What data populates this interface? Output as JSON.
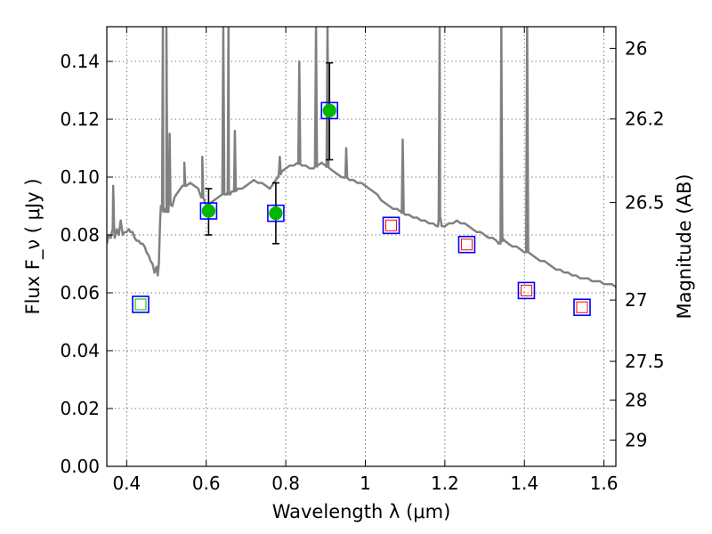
{
  "chart_data": {
    "type": "scatter",
    "title": "",
    "xlabel": "Wavelength  λ (μm)",
    "ylabel": "Flux  F_ν  ( μJy )",
    "ylabel_right": "Magnitude (AB)",
    "xlim": [
      0.35,
      1.63
    ],
    "ylim": [
      0.0,
      0.152
    ],
    "grid": true,
    "x_ticks": [
      0.4,
      0.6,
      0.8,
      1.0,
      1.2,
      1.4,
      1.6
    ],
    "x_tick_labels": [
      "0.4",
      "0.6",
      "0.8",
      "1",
      "1.2",
      "1.4",
      "1.6"
    ],
    "y_ticks": [
      0.0,
      0.02,
      0.04,
      0.06,
      0.08,
      0.1,
      0.12,
      0.14
    ],
    "y_tick_labels": [
      "0.00",
      "0.02",
      "0.04",
      "0.06",
      "0.08",
      "0.10",
      "0.12",
      "0.14"
    ],
    "right_ticks": [
      {
        "flux": 0.1445,
        "label": "26"
      },
      {
        "flux": 0.1201,
        "label": "26.2"
      },
      {
        "flux": 0.0912,
        "label": "26.5"
      },
      {
        "flux": 0.0575,
        "label": "27"
      },
      {
        "flux": 0.0363,
        "label": "27.5"
      },
      {
        "flux": 0.0229,
        "label": "28"
      },
      {
        "flux": 0.0091,
        "label": "29"
      }
    ],
    "series": [
      {
        "kind": "sed_model",
        "color": "#808080",
        "x": [
          0.35,
          0.355,
          0.36,
          0.365,
          0.37,
          0.375,
          0.38,
          0.385,
          0.39,
          0.395,
          0.4,
          0.405,
          0.41,
          0.415,
          0.42,
          0.425,
          0.43,
          0.435,
          0.44,
          0.445,
          0.45,
          0.455,
          0.46,
          0.465,
          0.47,
          0.475,
          0.478,
          0.481,
          0.484,
          0.486,
          0.489,
          0.492,
          0.496,
          0.5,
          0.505,
          0.51,
          0.515,
          0.52,
          0.525,
          0.53,
          0.535,
          0.54,
          0.545,
          0.55,
          0.56,
          0.57,
          0.58,
          0.59,
          0.6,
          0.61,
          0.62,
          0.63,
          0.64,
          0.65,
          0.654,
          0.657,
          0.66,
          0.664,
          0.67,
          0.68,
          0.69,
          0.7,
          0.71,
          0.72,
          0.73,
          0.74,
          0.75,
          0.76,
          0.77,
          0.78,
          0.79,
          0.8,
          0.81,
          0.82,
          0.83,
          0.84,
          0.85,
          0.86,
          0.87,
          0.88,
          0.89,
          0.9,
          0.91,
          0.92,
          0.93,
          0.94,
          0.95,
          0.96,
          0.97,
          0.98,
          0.99,
          1.0,
          1.01,
          1.02,
          1.03,
          1.04,
          1.05,
          1.06,
          1.07,
          1.08,
          1.09,
          1.1,
          1.11,
          1.12,
          1.13,
          1.14,
          1.15,
          1.16,
          1.17,
          1.18,
          1.183,
          1.188,
          1.192,
          1.2,
          1.21,
          1.22,
          1.23,
          1.24,
          1.25,
          1.26,
          1.27,
          1.28,
          1.29,
          1.3,
          1.31,
          1.32,
          1.33,
          1.335,
          1.34,
          1.345,
          1.35,
          1.36,
          1.37,
          1.38,
          1.39,
          1.4,
          1.41,
          1.42,
          1.43,
          1.44,
          1.45,
          1.46,
          1.47,
          1.48,
          1.49,
          1.5,
          1.51,
          1.52,
          1.53,
          1.54,
          1.55,
          1.56,
          1.57,
          1.58,
          1.59,
          1.6,
          1.61,
          1.62,
          1.63
        ],
        "y": [
          0.077,
          0.08,
          0.079,
          0.082,
          0.079,
          0.082,
          0.08,
          0.085,
          0.08,
          0.081,
          0.081,
          0.082,
          0.081,
          0.081,
          0.079,
          0.078,
          0.078,
          0.077,
          0.077,
          0.076,
          0.074,
          0.073,
          0.071,
          0.07,
          0.067,
          0.069,
          0.066,
          0.07,
          0.085,
          0.09,
          0.09,
          0.088,
          0.089,
          0.088,
          0.088,
          0.092,
          0.09,
          0.093,
          0.094,
          0.095,
          0.096,
          0.097,
          0.097,
          0.097,
          0.098,
          0.097,
          0.096,
          0.093,
          0.09,
          0.091,
          0.092,
          0.093,
          0.094,
          0.094,
          0.094,
          0.095,
          0.094,
          0.095,
          0.095,
          0.096,
          0.096,
          0.097,
          0.098,
          0.099,
          0.098,
          0.098,
          0.097,
          0.096,
          0.098,
          0.1,
          0.102,
          0.103,
          0.104,
          0.104,
          0.105,
          0.104,
          0.104,
          0.103,
          0.103,
          0.104,
          0.105,
          0.104,
          0.103,
          0.102,
          0.101,
          0.1,
          0.1,
          0.099,
          0.099,
          0.098,
          0.098,
          0.097,
          0.096,
          0.095,
          0.094,
          0.092,
          0.091,
          0.09,
          0.089,
          0.089,
          0.088,
          0.087,
          0.087,
          0.086,
          0.086,
          0.085,
          0.085,
          0.084,
          0.084,
          0.083,
          0.083,
          0.086,
          0.083,
          0.083,
          0.084,
          0.084,
          0.085,
          0.084,
          0.084,
          0.083,
          0.082,
          0.081,
          0.081,
          0.08,
          0.079,
          0.079,
          0.078,
          0.077,
          0.077,
          0.079,
          0.078,
          0.077,
          0.076,
          0.076,
          0.075,
          0.074,
          0.074,
          0.073,
          0.072,
          0.071,
          0.071,
          0.07,
          0.069,
          0.068,
          0.068,
          0.067,
          0.067,
          0.066,
          0.066,
          0.065,
          0.065,
          0.065,
          0.064,
          0.064,
          0.064,
          0.063,
          0.063,
          0.063,
          0.062
        ],
        "emission_lines": [
          {
            "x": 0.366,
            "peak": 0.097
          },
          {
            "x": 0.491,
            "peak": 0.152
          },
          {
            "x": 0.5,
            "peak": 0.152
          },
          {
            "x": 0.508,
            "peak": 0.115
          },
          {
            "x": 0.545,
            "peak": 0.105
          },
          {
            "x": 0.59,
            "peak": 0.107
          },
          {
            "x": 0.643,
            "peak": 0.152
          },
          {
            "x": 0.656,
            "peak": 0.152
          },
          {
            "x": 0.672,
            "peak": 0.116
          },
          {
            "x": 0.785,
            "peak": 0.107
          },
          {
            "x": 0.834,
            "peak": 0.14
          },
          {
            "x": 0.876,
            "peak": 0.152
          },
          {
            "x": 0.905,
            "peak": 0.152
          },
          {
            "x": 0.952,
            "peak": 0.11
          },
          {
            "x": 1.094,
            "peak": 0.113
          },
          {
            "x": 1.187,
            "peak": 0.152
          },
          {
            "x": 1.342,
            "peak": 0.152
          },
          {
            "x": 1.407,
            "peak": 0.152
          }
        ]
      },
      {
        "kind": "observed_detections",
        "marker": "filled-circle-in-square",
        "color": "#00b800",
        "box_color": "#0000ff",
        "points": [
          {
            "x": 0.606,
            "y": 0.0883,
            "err_lo": 0.08,
            "err_hi": 0.096
          },
          {
            "x": 0.775,
            "y": 0.0875,
            "err_lo": 0.077,
            "err_hi": 0.098
          },
          {
            "x": 0.91,
            "y": 0.123,
            "err_lo": 0.106,
            "err_hi": 0.1395
          }
        ]
      },
      {
        "kind": "observed_limit",
        "marker": "open-square-in-square",
        "color": "#00b800",
        "box_color": "#0000ff",
        "points": [
          {
            "x": 0.435,
            "y": 0.056
          }
        ]
      },
      {
        "kind": "model_photometry",
        "marker": "open-square-in-square",
        "color": "#ff0000",
        "box_color": "#0000ff",
        "points": [
          {
            "x": 1.065,
            "y": 0.0833
          },
          {
            "x": 1.255,
            "y": 0.0767
          },
          {
            "x": 1.405,
            "y": 0.0608
          },
          {
            "x": 1.545,
            "y": 0.055
          }
        ]
      }
    ]
  }
}
